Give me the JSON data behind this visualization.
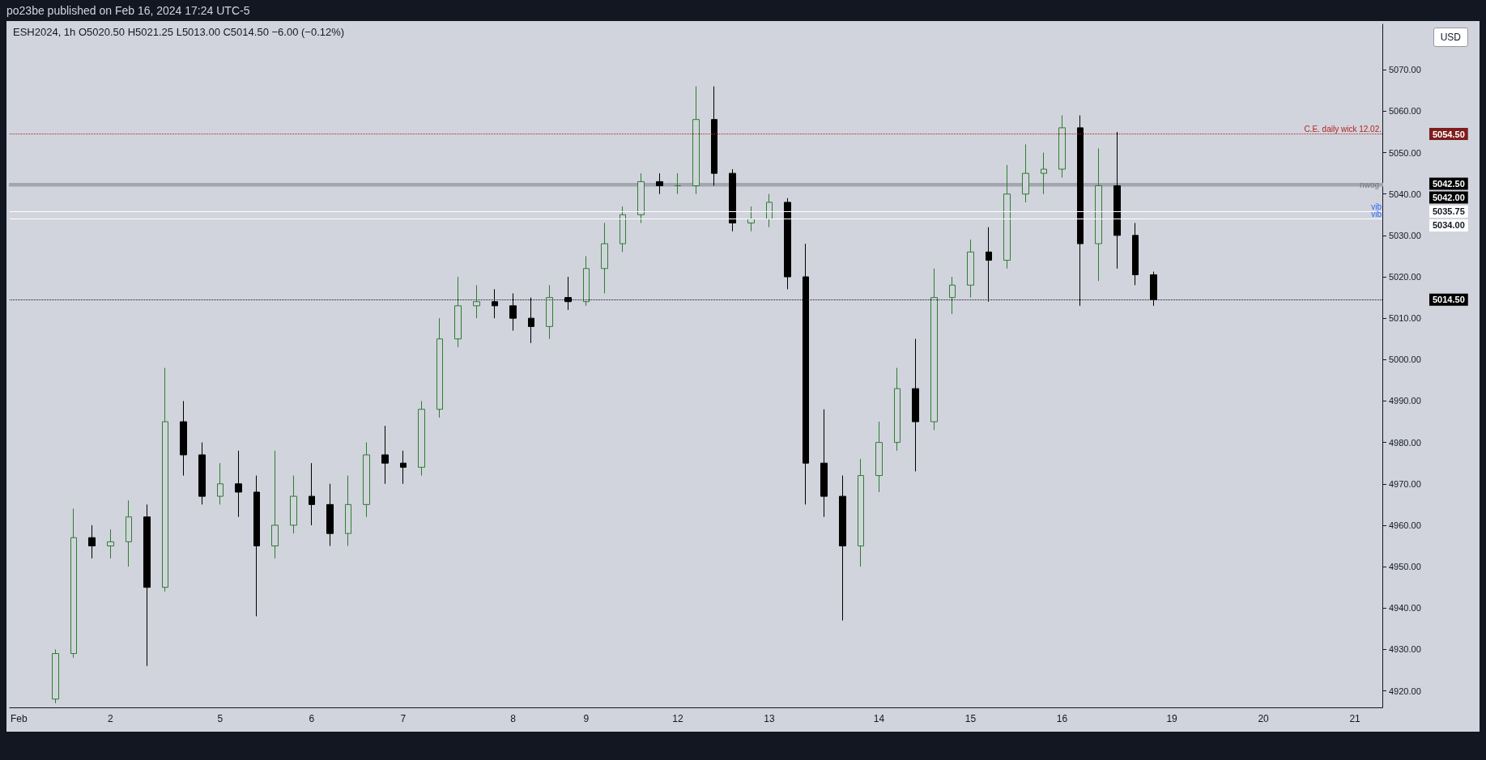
{
  "chart_data": {
    "type": "candlestick",
    "title": "ESH2024, 1h",
    "subtitle": "O5020.50 H5021.25 L5013.00 C5014.50 −6.00 (−0.12%)",
    "ylabel": "USD",
    "annotations": [
      "po23be published on Feb 16, 2024 17:24 UTC-5",
      "5054.50",
      "5042.50",
      "5042.00",
      "5035.75",
      "5034.00",
      "5014.50"
    ],
    "categories": [
      "Feb",
      null,
      null,
      null,
      null,
      "2",
      null,
      null,
      null,
      null,
      null,
      "5",
      null,
      null,
      null,
      null,
      "6",
      null,
      null,
      null,
      null,
      "7",
      null,
      null,
      null,
      null,
      null,
      "8",
      null,
      null,
      null,
      "9",
      null,
      null,
      null,
      null,
      "12",
      null,
      null,
      null,
      null,
      "13",
      null,
      null,
      null,
      null,
      null,
      "14",
      null,
      null,
      null,
      null,
      "15",
      null,
      null,
      null,
      null,
      "16",
      null,
      null,
      null,
      null,
      null,
      "19",
      null,
      null,
      null,
      null,
      "20",
      null,
      null,
      null,
      null,
      "21",
      null
    ],
    "ohlc": [
      null,
      null,
      [
        4918,
        4930,
        4917,
        4929
      ],
      [
        4929,
        4964,
        4928,
        4957
      ],
      [
        4957,
        4960,
        4952,
        4955
      ],
      [
        4955,
        4959,
        4952,
        4956
      ],
      [
        4956,
        4966,
        4950,
        4962
      ],
      [
        4962,
        4965,
        4926,
        4945
      ],
      [
        4945,
        4998,
        4944,
        4985
      ],
      [
        4985,
        4990,
        4972,
        4977
      ],
      [
        4977,
        4980,
        4965,
        4967
      ],
      [
        4967,
        4975,
        4965,
        4970
      ],
      [
        4970,
        4978,
        4962,
        4968
      ],
      [
        4968,
        4972,
        4938,
        4955
      ],
      [
        4955,
        4978,
        4952,
        4960
      ],
      [
        4960,
        4972,
        4958,
        4967
      ],
      [
        4967,
        4975,
        4960,
        4965
      ],
      [
        4965,
        4970,
        4955,
        4958
      ],
      [
        4958,
        4972,
        4955,
        4965
      ],
      [
        4965,
        4980,
        4962,
        4977
      ],
      [
        4977,
        4984,
        4970,
        4975
      ],
      [
        4975,
        4978,
        4970,
        4974
      ],
      [
        4974,
        4990,
        4972,
        4988
      ],
      [
        4988,
        5010,
        4986,
        5005
      ],
      [
        5005,
        5020,
        5003,
        5013
      ],
      [
        5013,
        5018,
        5010,
        5014
      ],
      [
        5014,
        5017,
        5010,
        5013
      ],
      [
        5013,
        5016,
        5007,
        5010
      ],
      [
        5010,
        5015,
        5004,
        5008
      ],
      [
        5008,
        5018,
        5005,
        5015
      ],
      [
        5015,
        5020,
        5012,
        5014
      ],
      [
        5014,
        5025,
        5013,
        5022
      ],
      [
        5022,
        5033,
        5016,
        5028
      ],
      [
        5028,
        5037,
        5026,
        5035
      ],
      [
        5035,
        5045,
        5033,
        5043
      ],
      [
        5043,
        5045,
        5040,
        5042
      ],
      [
        5042,
        5045,
        5040,
        5042
      ],
      [
        5042,
        5066,
        5040,
        5058
      ],
      [
        5058,
        5066,
        5042,
        5045
      ],
      [
        5045,
        5046,
        5031,
        5033
      ],
      [
        5033,
        5037,
        5031,
        5034
      ],
      [
        5034,
        5040,
        5032,
        5038
      ],
      [
        5038,
        5039,
        5017,
        5020
      ],
      [
        5020,
        5028,
        4965,
        4975
      ],
      [
        4975,
        4988,
        4962,
        4967
      ],
      [
        4967,
        4972,
        4937,
        4955
      ],
      [
        4955,
        4976,
        4950,
        4972
      ],
      [
        4972,
        4985,
        4968,
        4980
      ],
      [
        4980,
        4998,
        4978,
        4993
      ],
      [
        4993,
        5005,
        4973,
        4985
      ],
      [
        4985,
        5022,
        4983,
        5015
      ],
      [
        5015,
        5020,
        5011,
        5018
      ],
      [
        5018,
        5029,
        5015,
        5026
      ],
      [
        5026,
        5032,
        5014,
        5024
      ],
      [
        5024,
        5047,
        5022,
        5040
      ],
      [
        5040,
        5052,
        5038,
        5045
      ],
      [
        5045,
        5050,
        5040,
        5046
      ],
      [
        5046,
        5059,
        5044,
        5056
      ],
      [
        5056,
        5059,
        5013,
        5028
      ],
      [
        5028,
        5051,
        5019,
        5042
      ],
      [
        5042,
        5055,
        5022,
        5030
      ],
      [
        5030,
        5033,
        5018,
        5020.5
      ],
      [
        5020.5,
        5021.25,
        5013,
        5014.5
      ],
      null,
      null,
      null,
      null,
      null,
      null,
      null,
      null,
      null,
      null,
      null,
      null
    ],
    "ylim": [
      4916,
      5081
    ],
    "yticks": [
      {
        "value": 4920,
        "label": "4920.00"
      },
      {
        "value": 4930,
        "label": "4930.00"
      },
      {
        "value": 4940,
        "label": "4940.00"
      },
      {
        "value": 4950,
        "label": "4950.00"
      },
      {
        "value": 4960,
        "label": "4960.00"
      },
      {
        "value": 4970,
        "label": "4970.00"
      },
      {
        "value": 4980,
        "label": "4980.00"
      },
      {
        "value": 4990,
        "label": "4990.00"
      },
      {
        "value": 5000,
        "label": "5000.00"
      },
      {
        "value": 5010,
        "label": "5010.00"
      },
      {
        "value": 5020,
        "label": "5020.00"
      },
      {
        "value": 5030,
        "label": "5030.00"
      },
      {
        "value": 5040,
        "label": "5040.00"
      },
      {
        "value": 5050,
        "label": "5050.00"
      },
      {
        "value": 5060,
        "label": "5060.00"
      },
      {
        "value": 5070,
        "label": "5070.00"
      }
    ],
    "ref_lines": [
      {
        "axis": "y",
        "value": 5054.5,
        "label": "C.E. daily wick 12.02.",
        "color": "#b22222",
        "line_style": "dotted"
      },
      {
        "axis": "y",
        "value": 5035.75,
        "label": "vib",
        "color": "#ffffff",
        "line_style": "solid"
      },
      {
        "axis": "y",
        "value": 5034,
        "label": "vib",
        "color": "#ffffff",
        "line_style": "solid"
      },
      {
        "axis": "y",
        "value": 5014.5,
        "label": null,
        "color": "#131722",
        "line_style": "dotted"
      }
    ],
    "bands": [
      {
        "axis": "y",
        "from": 5042,
        "to": 5042.5,
        "label": "nwog",
        "color": "#a3a6af"
      }
    ]
  }
}
